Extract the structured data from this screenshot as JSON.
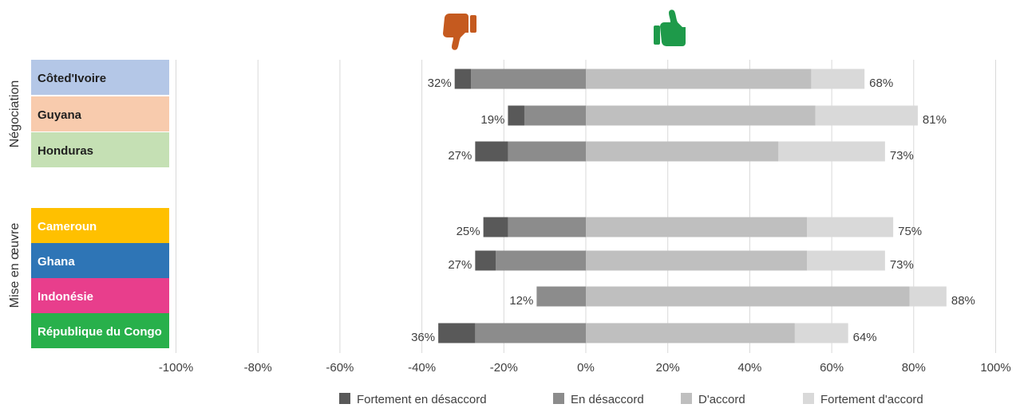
{
  "chart_data": {
    "type": "bar",
    "orientation": "horizontal",
    "stacked": "diverging",
    "xlim": [
      -100,
      100
    ],
    "x_ticks": [
      -100,
      -80,
      -60,
      -40,
      -20,
      0,
      20,
      40,
      60,
      80,
      100
    ],
    "x_tick_labels": [
      "-100%",
      "-80%",
      "-60%",
      "-40%",
      "-20%",
      "0%",
      "20%",
      "40%",
      "60%",
      "80%",
      "100%"
    ],
    "grid": "vertical",
    "legend_position": "bottom",
    "icons": {
      "negative": "thumbs-down-icon",
      "positive": "thumbs-up-icon",
      "negative_color": "#c55a1f",
      "positive_color": "#1e9a4a"
    },
    "groups": [
      {
        "label": "Négociation",
        "categories": [
          "Côted'Ivoire",
          "Guyana",
          "Honduras"
        ]
      },
      {
        "label": "Mise en œuvre",
        "categories": [
          "Cameroun",
          "Ghana",
          "Indonésie",
          "République du Congo"
        ]
      }
    ],
    "categories": [
      "Côted'Ivoire",
      "Guyana",
      "Honduras",
      "Cameroun",
      "Ghana",
      "Indonésie",
      "République du Congo"
    ],
    "category_colors": [
      "#b4c7e7",
      "#f8cbad",
      "#c5e0b4",
      "#ffc000",
      "#2e75b6",
      "#e83e8c",
      "#28b04b"
    ],
    "category_text_colors": [
      "#1f1f1f",
      "#1f1f1f",
      "#1f1f1f",
      "#ffffff",
      "#ffffff",
      "#ffffff",
      "#ffffff"
    ],
    "series": [
      {
        "name": "Fortement en désaccord",
        "color": "#595959",
        "values": [
          -4,
          -4,
          -8,
          -6,
          -5,
          0,
          -9
        ]
      },
      {
        "name": "En désaccord",
        "color": "#8c8c8c",
        "values": [
          -28,
          -15,
          -19,
          -19,
          -22,
          -12,
          -27
        ]
      },
      {
        "name": "D'accord",
        "color": "#bfbfbf",
        "values": [
          55,
          56,
          47,
          54,
          54,
          79,
          51
        ]
      },
      {
        "name": "Fortement d'accord",
        "color": "#d9d9d9",
        "values": [
          13,
          25,
          26,
          21,
          19,
          9,
          13
        ]
      }
    ],
    "negative_totals": [
      "32%",
      "19%",
      "27%",
      "25%",
      "27%",
      "12%",
      "36%"
    ],
    "positive_totals": [
      "68%",
      "81%",
      "73%",
      "75%",
      "73%",
      "88%",
      "64%"
    ]
  }
}
